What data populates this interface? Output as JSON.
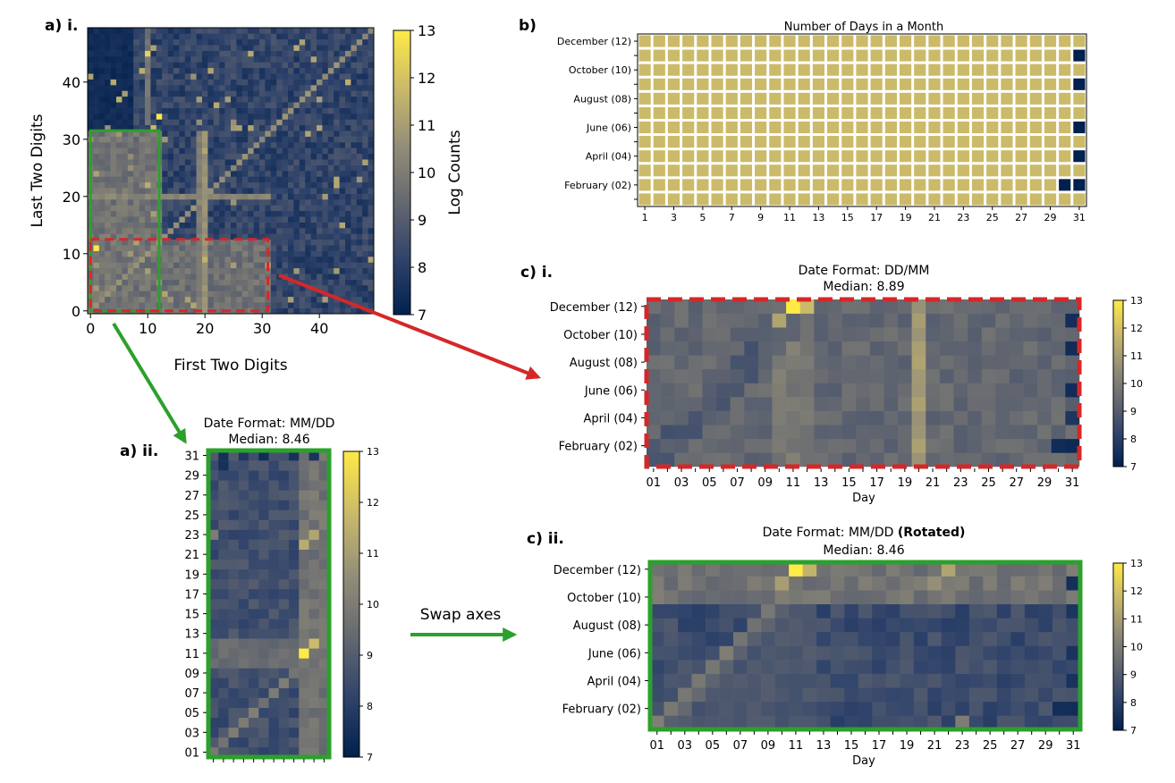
{
  "colors": {
    "cmap": [
      "#00204d",
      "#31446b",
      "#666970",
      "#958f78",
      "#cbba69",
      "#ffea46"
    ],
    "green_box": "#2ca02c",
    "red_box": "#d62728",
    "day_valid": "#cbba69",
    "day_invalid": "#00204d"
  },
  "labels": {
    "a_i": "a) i.",
    "a_ii": "a) ii.",
    "b": "b)",
    "c_i": "c) i.",
    "c_ii": "c) ii.",
    "swap": "Swap axes"
  },
  "chart_data": [
    {
      "id": "a_i",
      "type": "heatmap",
      "xlabel": "First Two Digits",
      "ylabel": "Last Two Digits",
      "x_range": [
        0,
        49
      ],
      "y_range": [
        0,
        49
      ],
      "xticks": [
        "0",
        "10",
        "20",
        "30",
        "40"
      ],
      "yticks": [
        "0",
        "10",
        "20",
        "30",
        "40"
      ],
      "colorbar_label": "Log Counts",
      "colorbar_ticks": [
        "7",
        "8",
        "9",
        "10",
        "11",
        "12",
        "13"
      ],
      "clim": [
        7,
        13
      ],
      "highlight_green": {
        "x": [
          1,
          12
        ],
        "y": [
          1,
          31
        ]
      },
      "highlight_red": {
        "x": [
          1,
          31
        ],
        "y": [
          1,
          12
        ]
      }
    },
    {
      "id": "b",
      "type": "heatmap",
      "title": "Number of Days in a Month",
      "xticks": [
        "1",
        "3",
        "5",
        "7",
        "9",
        "11",
        "13",
        "15",
        "17",
        "19",
        "21",
        "23",
        "25",
        "27",
        "29",
        "31"
      ],
      "yticks": [
        "December (12)",
        "October (10)",
        "August (08)",
        "June (06)",
        "April (04)",
        "February (02)"
      ],
      "days_in_month": [
        31,
        29,
        31,
        30,
        31,
        30,
        31,
        31,
        30,
        31,
        30,
        31
      ]
    },
    {
      "id": "c_i",
      "type": "heatmap",
      "title": "Date Format: DD/MM",
      "subtitle": "Median: 8.89",
      "xlabel": "Day",
      "xticks": [
        "01",
        "03",
        "05",
        "07",
        "09",
        "11",
        "13",
        "15",
        "17",
        "19",
        "21",
        "23",
        "25",
        "27",
        "29",
        "31"
      ],
      "yticks": [
        "December (12)",
        "October (10)",
        "August (08)",
        "June (06)",
        "April (04)",
        "February (02)"
      ],
      "colorbar_ticks": [
        "7",
        "8",
        "9",
        "10",
        "11",
        "12",
        "13"
      ],
      "clim": [
        7,
        13
      ],
      "median": 8.89
    },
    {
      "id": "a_ii",
      "type": "heatmap",
      "title": "Date Format: MM/DD",
      "subtitle": "Median: 8.46",
      "yticks": [
        "01",
        "03",
        "05",
        "07",
        "09",
        "11",
        "13",
        "15",
        "17",
        "19",
        "21",
        "23",
        "25",
        "27",
        "29",
        "31"
      ],
      "colorbar_ticks": [
        "7",
        "8",
        "9",
        "10",
        "11",
        "12",
        "13"
      ],
      "clim": [
        7,
        13
      ],
      "median": 8.46
    },
    {
      "id": "c_ii",
      "type": "heatmap",
      "title_plain": "Date Format: MM/DD ",
      "title_bold": "(Rotated)",
      "subtitle": "Median: 8.46",
      "xlabel": "Day",
      "xticks": [
        "01",
        "03",
        "05",
        "07",
        "09",
        "11",
        "13",
        "15",
        "17",
        "19",
        "21",
        "23",
        "25",
        "27",
        "29",
        "31"
      ],
      "yticks": [
        "December (12)",
        "October (10)",
        "August (08)",
        "June (06)",
        "April (04)",
        "February (02)"
      ],
      "colorbar_ticks": [
        "7",
        "8",
        "9",
        "10",
        "11",
        "12",
        "13"
      ],
      "clim": [
        7,
        13
      ],
      "median": 8.46
    }
  ]
}
